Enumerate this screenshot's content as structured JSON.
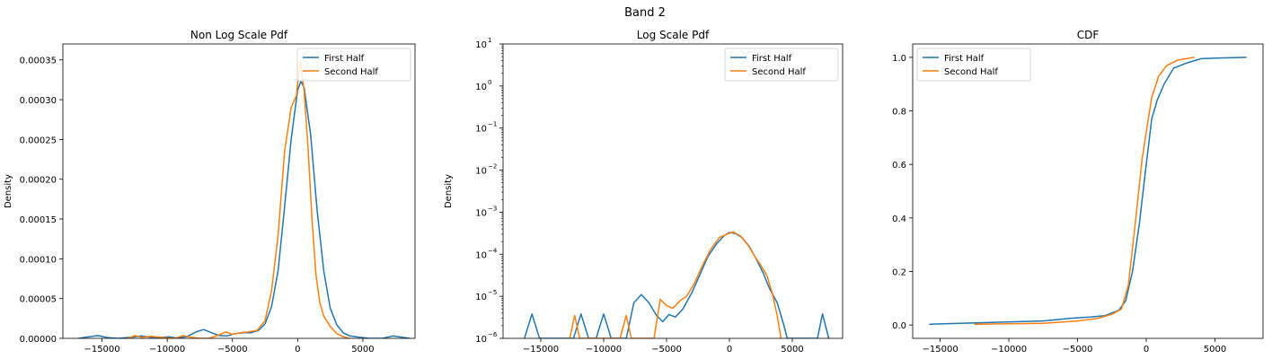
{
  "figure": {
    "suptitle": "Band 2"
  },
  "colors": {
    "first": "#1f77b4",
    "second": "#ff7f0e"
  },
  "chart_data": [
    {
      "type": "line",
      "title": "Non Log Scale Pdf",
      "ylabel": "Density",
      "xlabel": "",
      "xlim": [
        -18000,
        9000
      ],
      "ylim": [
        0,
        0.00037
      ],
      "xticks": [
        -15000,
        -10000,
        -5000,
        0,
        5000
      ],
      "xtick_labels": [
        "−15000",
        "−10000",
        "−5000",
        "0",
        "5000"
      ],
      "yticks": [
        0,
        5e-05,
        0.0001,
        0.00015,
        0.0002,
        0.00025,
        0.0003,
        0.00035
      ],
      "ytick_labels": [
        "0.00000",
        "0.00005",
        "0.00010",
        "0.00015",
        "0.00020",
        "0.00025",
        "0.00030",
        "0.00035"
      ],
      "legend": {
        "position": "top-right",
        "entries": [
          "First Half",
          "Second Half"
        ]
      },
      "series": [
        {
          "name": "First Half",
          "points": [
            [
              -16800,
              0
            ],
            [
              -16000,
              2e-06
            ],
            [
              -15300,
              3.5e-06
            ],
            [
              -14600,
              1e-06
            ],
            [
              -13800,
              0
            ],
            [
              -12700,
              1.5e-06
            ],
            [
              -12000,
              3e-06
            ],
            [
              -11300,
              1.5e-06
            ],
            [
              -10600,
              8e-07
            ],
            [
              -9900,
              2e-06
            ],
            [
              -9300,
              5e-07
            ],
            [
              -8500,
              2e-06
            ],
            [
              -7800,
              8e-06
            ],
            [
              -7200,
              1.1e-05
            ],
            [
              -6600,
              7e-06
            ],
            [
              -6000,
              3.5e-06
            ],
            [
              -5400,
              3e-06
            ],
            [
              -4800,
              6e-06
            ],
            [
              -4200,
              7e-06
            ],
            [
              -3600,
              7e-06
            ],
            [
              -3000,
              1e-05
            ],
            [
              -2500,
              1.8e-05
            ],
            [
              -2000,
              4e-05
            ],
            [
              -1500,
              8.5e-05
            ],
            [
              -1000,
              0.000165
            ],
            [
              -500,
              0.00025
            ],
            [
              0,
              0.000312
            ],
            [
              250,
              0.000323
            ],
            [
              500,
              0.000315
            ],
            [
              1000,
              0.000255
            ],
            [
              1500,
              0.00016
            ],
            [
              2000,
              8.5e-05
            ],
            [
              2500,
              3.8e-05
            ],
            [
              3000,
              1.7e-05
            ],
            [
              3500,
              7e-06
            ],
            [
              4000,
              3e-06
            ],
            [
              4800,
              1.2e-06
            ],
            [
              5500,
              0
            ],
            [
              6500,
              0
            ],
            [
              7300,
              3e-06
            ],
            [
              8000,
              1.5e-06
            ],
            [
              8600,
              0
            ]
          ]
        },
        {
          "name": "Second Half",
          "points": [
            [
              -13000,
              0
            ],
            [
              -12500,
              3.5e-06
            ],
            [
              -12000,
              1.5e-06
            ],
            [
              -11200,
              2.5e-06
            ],
            [
              -10300,
              1e-06
            ],
            [
              -9400,
              0
            ],
            [
              -8800,
              3.5e-06
            ],
            [
              -8200,
              1.5e-06
            ],
            [
              -7500,
              0
            ],
            [
              -6800,
              0
            ],
            [
              -6100,
              4e-06
            ],
            [
              -5500,
              8e-06
            ],
            [
              -5000,
              5e-06
            ],
            [
              -4400,
              7e-06
            ],
            [
              -3800,
              8e-06
            ],
            [
              -3100,
              1e-05
            ],
            [
              -2500,
              2.2e-05
            ],
            [
              -2000,
              6e-05
            ],
            [
              -1500,
              0.00013
            ],
            [
              -1000,
              0.000235
            ],
            [
              -500,
              0.00029
            ],
            [
              -100,
              0.000305
            ],
            [
              200,
              0.00035
            ],
            [
              500,
              0.00031
            ],
            [
              800,
              0.00024
            ],
            [
              1100,
              0.00015
            ],
            [
              1400,
              8e-05
            ],
            [
              1700,
              4.5e-05
            ],
            [
              2000,
              2.8e-05
            ],
            [
              2500,
              1.5e-05
            ],
            [
              3000,
              6e-06
            ],
            [
              3500,
              2e-06
            ],
            [
              4000,
              0
            ]
          ]
        }
      ]
    },
    {
      "type": "line",
      "title": "Log Scale Pdf",
      "ylabel": "Density",
      "xlabel": "",
      "yscale": "log",
      "xlim": [
        -18000,
        9000
      ],
      "ylim_log10": [
        -6,
        1
      ],
      "xticks": [
        -15000,
        -10000,
        -5000,
        0,
        5000
      ],
      "xtick_labels": [
        "−15000",
        "−10000",
        "−5000",
        "0",
        "5000"
      ],
      "yticks_log10": [
        -6,
        -5,
        -4,
        -3,
        -2,
        -1,
        0,
        1
      ],
      "ytick_base": "10",
      "ytick_exponents": [
        "−6",
        "−5",
        "−4",
        "−3",
        "−2",
        "−1",
        "0",
        "1"
      ],
      "legend": {
        "position": "top-right",
        "entries": [
          "First Half",
          "Second Half"
        ]
      },
      "series": [
        {
          "name": "First Half",
          "points": [
            [
              -16300,
              1e-06
            ],
            [
              -15700,
              3.8e-06
            ],
            [
              -15100,
              1e-06
            ],
            [
              -12400,
              1e-06
            ],
            [
              -11800,
              3.8e-06
            ],
            [
              -11200,
              1e-06
            ],
            [
              -10600,
              1e-06
            ],
            [
              -10000,
              3.8e-06
            ],
            [
              -9400,
              1e-06
            ],
            [
              -8200,
              1e-06
            ],
            [
              -7600,
              7e-06
            ],
            [
              -7000,
              1.1e-05
            ],
            [
              -6400,
              7e-06
            ],
            [
              -5800,
              3.5e-06
            ],
            [
              -5300,
              2.5e-06
            ],
            [
              -4800,
              3.7e-06
            ],
            [
              -4300,
              3.2e-06
            ],
            [
              -3700,
              5e-06
            ],
            [
              -3000,
              1.2e-05
            ],
            [
              -2400,
              3e-05
            ],
            [
              -1700,
              9e-05
            ],
            [
              -1000,
              0.00018
            ],
            [
              -400,
              0.00028
            ],
            [
              0,
              0.00033
            ],
            [
              500,
              0.00031
            ],
            [
              1000,
              0.00025
            ],
            [
              1600,
              0.00015
            ],
            [
              2100,
              8e-05
            ],
            [
              2700,
              3.5e-05
            ],
            [
              3200,
              1.5e-05
            ],
            [
              3800,
              7e-06
            ],
            [
              4300,
              2.2e-06
            ],
            [
              4600,
              1e-06
            ],
            [
              7000,
              1e-06
            ],
            [
              7400,
              3.8e-06
            ],
            [
              7900,
              1e-06
            ]
          ]
        },
        {
          "name": "Second Half",
          "points": [
            [
              -12700,
              1e-06
            ],
            [
              -12300,
              3.5e-06
            ],
            [
              -11900,
              1e-06
            ],
            [
              -8700,
              1e-06
            ],
            [
              -8200,
              3.5e-06
            ],
            [
              -7800,
              1e-06
            ],
            [
              -6000,
              1e-06
            ],
            [
              -5500,
              8.5e-06
            ],
            [
              -5000,
              6e-06
            ],
            [
              -4500,
              5.2e-06
            ],
            [
              -3900,
              8e-06
            ],
            [
              -3400,
              1e-05
            ],
            [
              -2800,
              2e-05
            ],
            [
              -2200,
              5e-05
            ],
            [
              -1500,
              0.00013
            ],
            [
              -800,
              0.00025
            ],
            [
              -200,
              0.0003
            ],
            [
              300,
              0.00034
            ],
            [
              900,
              0.00027
            ],
            [
              1500,
              0.00016
            ],
            [
              2000,
              9e-05
            ],
            [
              2500,
              5.5e-05
            ],
            [
              3000,
              3e-05
            ],
            [
              3400,
              1.2e-05
            ],
            [
              3800,
              3.5e-06
            ],
            [
              4100,
              1e-06
            ]
          ]
        }
      ]
    },
    {
      "type": "line",
      "title": "CDF",
      "ylabel": "",
      "xlabel": "",
      "xlim": [
        -17000,
        8500
      ],
      "ylim": [
        -0.05,
        1.05
      ],
      "xticks": [
        -15000,
        -10000,
        -5000,
        0,
        5000
      ],
      "xtick_labels": [
        "−15000",
        "−10000",
        "−5000",
        "0",
        "5000"
      ],
      "yticks": [
        0,
        0.2,
        0.4,
        0.6,
        0.8,
        1.0
      ],
      "ytick_labels": [
        "0.0",
        "0.2",
        "0.4",
        "0.6",
        "0.8",
        "1.0"
      ],
      "legend": {
        "position": "top-left",
        "entries": [
          "First Half",
          "Second Half"
        ]
      },
      "series": [
        {
          "name": "First Half",
          "points": [
            [
              -15800,
              0.003
            ],
            [
              -11000,
              0.01
            ],
            [
              -7500,
              0.015
            ],
            [
              -5500,
              0.025
            ],
            [
              -4000,
              0.03
            ],
            [
              -3000,
              0.035
            ],
            [
              -2000,
              0.055
            ],
            [
              -1500,
              0.09
            ],
            [
              -1000,
              0.2
            ],
            [
              -500,
              0.38
            ],
            [
              0,
              0.6
            ],
            [
              400,
              0.77
            ],
            [
              800,
              0.84
            ],
            [
              1300,
              0.9
            ],
            [
              2000,
              0.96
            ],
            [
              3000,
              0.98
            ],
            [
              4000,
              0.995
            ],
            [
              5000,
              0.997
            ],
            [
              7300,
              1.0
            ]
          ]
        },
        {
          "name": "Second Half",
          "points": [
            [
              -12500,
              0.003
            ],
            [
              -7500,
              0.006
            ],
            [
              -5000,
              0.015
            ],
            [
              -3500,
              0.025
            ],
            [
              -2500,
              0.04
            ],
            [
              -1800,
              0.06
            ],
            [
              -1300,
              0.15
            ],
            [
              -800,
              0.38
            ],
            [
              -300,
              0.62
            ],
            [
              0,
              0.72
            ],
            [
              400,
              0.85
            ],
            [
              900,
              0.93
            ],
            [
              1500,
              0.97
            ],
            [
              2300,
              0.99
            ],
            [
              3500,
              1.0
            ]
          ]
        }
      ]
    }
  ]
}
